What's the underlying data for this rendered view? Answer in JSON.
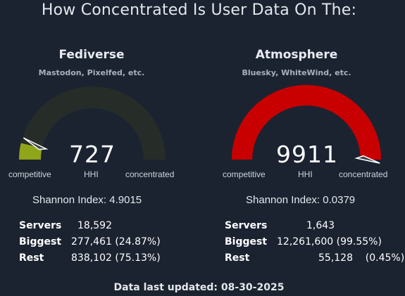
{
  "title": "How Concentrated Is User Data On The:",
  "footer": "Data last updated: 08-30-2025",
  "colors": {
    "background": "#1b2331",
    "gauge_track_fediverse": "#262d29",
    "gauge_fill_fediverse": "#8fa51a",
    "gauge_fill_atmosphere": "#c80000",
    "needle_fill": "#3a4048",
    "needle_stroke": "#ffffff"
  },
  "panels": [
    {
      "name": "Fediverse",
      "subtitle": "Mastodon, Pixelfed, etc.",
      "hhi": "727",
      "hhi_label": "HHI",
      "low_label": "competitive",
      "high_label": "concentrated",
      "shannon": "Shannon Index: 4.9015",
      "stats": [
        {
          "label": "Servers",
          "value": "18,592"
        },
        {
          "label": "Biggest",
          "value": "277,461 (24.87%)"
        },
        {
          "label": "Rest",
          "value": "838,102 (75.13%)"
        }
      ]
    },
    {
      "name": "Atmosphere",
      "subtitle": "Bluesky, WhiteWind, etc.",
      "hhi": "9911",
      "hhi_label": "HHI",
      "low_label": "competitive",
      "high_label": "concentrated",
      "shannon": "Shannon Index: 0.0379",
      "stats": [
        {
          "label": "Servers",
          "value": "1,643"
        },
        {
          "label": "Biggest",
          "value": "12,261,600 (99.55%)"
        },
        {
          "label": "Rest",
          "value": "55,128    (0.45%)"
        }
      ]
    }
  ],
  "chart_data": [
    {
      "type": "gauge",
      "title": "Fediverse",
      "value": 727,
      "range": [
        0,
        10000
      ],
      "min_label": "competitive",
      "max_label": "concentrated",
      "value_label": "HHI"
    },
    {
      "type": "gauge",
      "title": "Atmosphere",
      "value": 9911,
      "range": [
        0,
        10000
      ],
      "min_label": "competitive",
      "max_label": "concentrated",
      "value_label": "HHI"
    }
  ]
}
